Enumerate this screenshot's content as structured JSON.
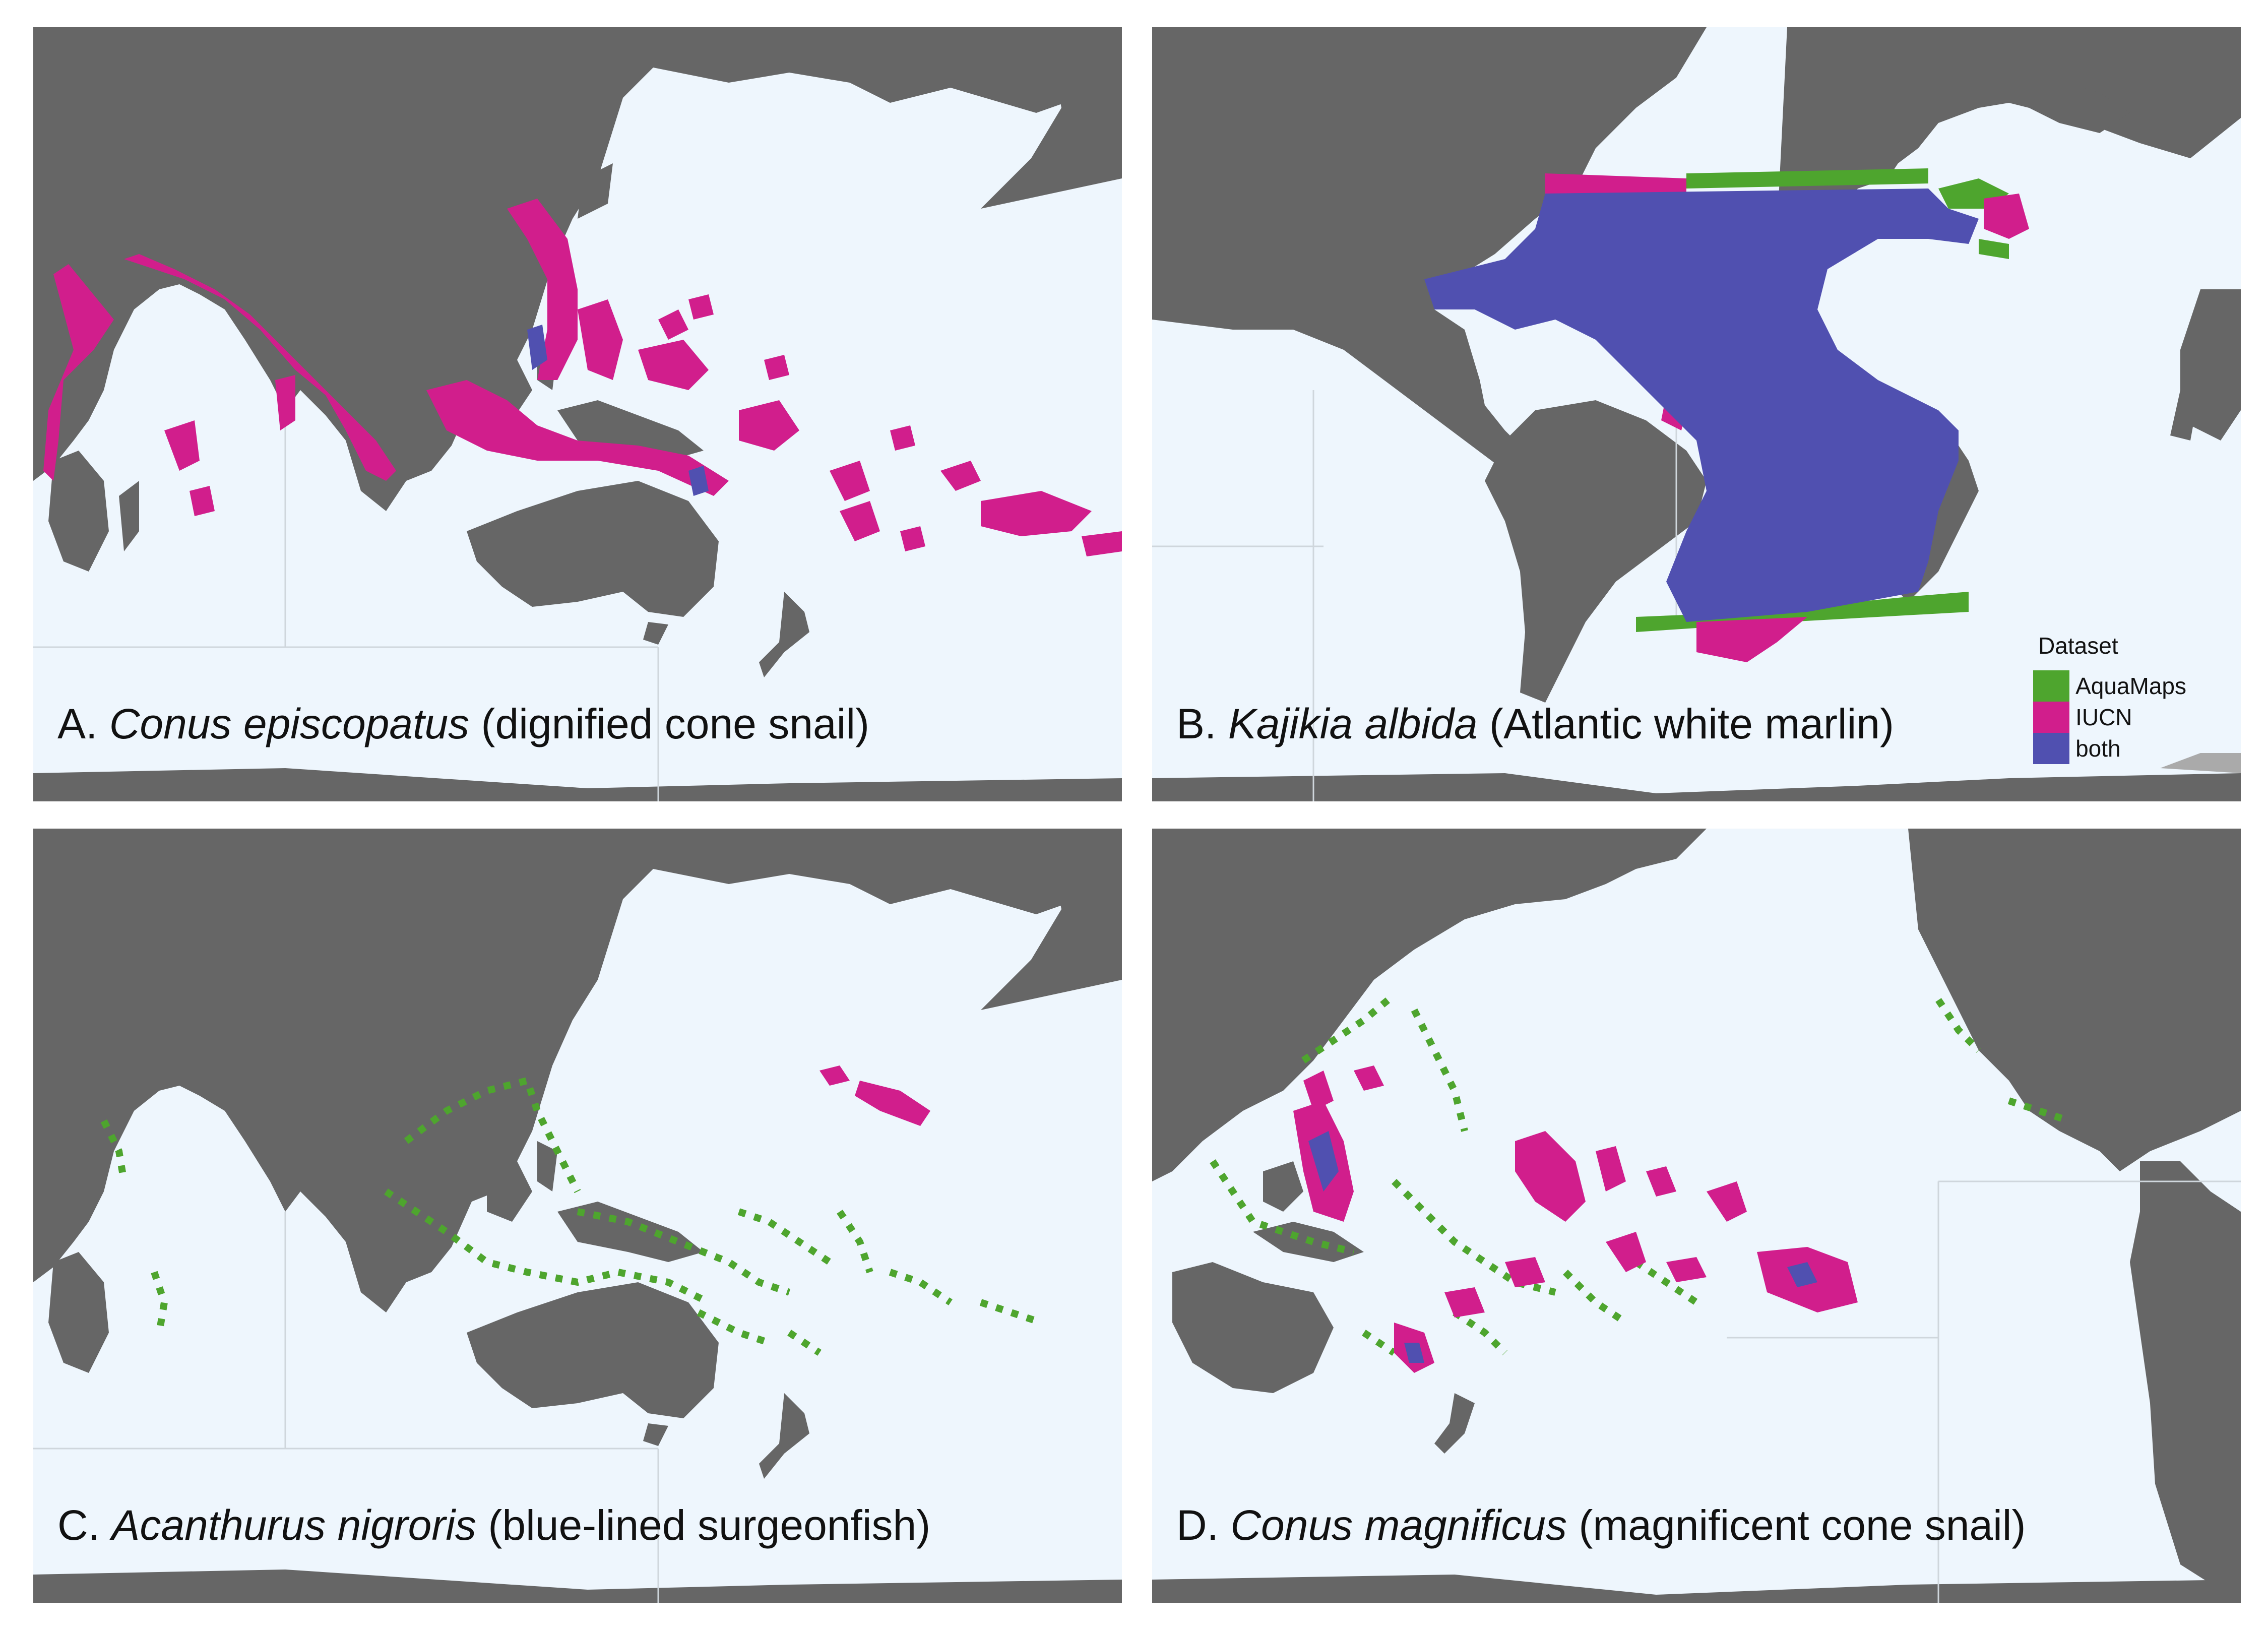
{
  "panels": [
    {
      "letter": "A.",
      "scientific": "Conus episcopatus",
      "common": "(dignified cone snail)"
    },
    {
      "letter": "B.",
      "scientific": "Kajikia albida",
      "common": "(Atlantic white marlin)"
    },
    {
      "letter": "C.",
      "scientific": "Acanthurus nigroris",
      "common": "(blue-lined surgeonfish)"
    },
    {
      "letter": "D.",
      "scientific": "Conus magnificus",
      "common": "(magnificent cone snail)"
    }
  ],
  "legend": {
    "title": "Dataset",
    "items": [
      {
        "label": "AquaMaps",
        "color": "#4ea52e"
      },
      {
        "label": "IUCN",
        "color": "#d11e8c"
      },
      {
        "label": "both",
        "color": "#5050b0"
      }
    ]
  },
  "colors": {
    "land": "#666666",
    "ocean": "#eef6fd",
    "aquamaps": "#4ea52e",
    "iucn": "#d11e8c",
    "both": "#5050b0"
  }
}
